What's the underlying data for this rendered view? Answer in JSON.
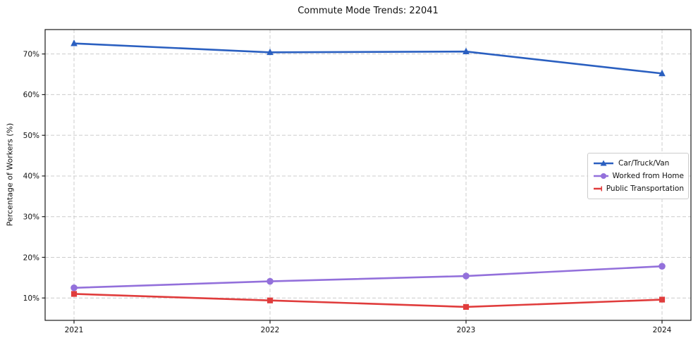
{
  "chart_data": {
    "type": "line",
    "title": "Commute Mode Trends: 22041",
    "xlabel": "",
    "ylabel": "Percentage of Workers (%)",
    "categories": [
      "2021",
      "2022",
      "2023",
      "2024"
    ],
    "series": [
      {
        "name": "Car/Truck/Van",
        "marker": "triangle",
        "color": "#2a5fc0",
        "values": [
          72.6,
          70.4,
          70.6,
          65.2
        ]
      },
      {
        "name": "Worked from Home",
        "marker": "circle",
        "color": "#9370db",
        "values": [
          12.5,
          14.1,
          15.4,
          17.8
        ]
      },
      {
        "name": "Public Transportation",
        "marker": "square",
        "color": "#e03c3c",
        "values": [
          11.0,
          9.4,
          7.8,
          9.6
        ]
      }
    ],
    "ylim": [
      4.5,
      76.0
    ],
    "yticks": [
      10,
      20,
      30,
      40,
      50,
      60,
      70
    ],
    "ytick_suffix": "%",
    "grid": true,
    "grid_color": "#cccccc",
    "axis_color": "#1a1a1a",
    "legend_position": "center-right"
  }
}
